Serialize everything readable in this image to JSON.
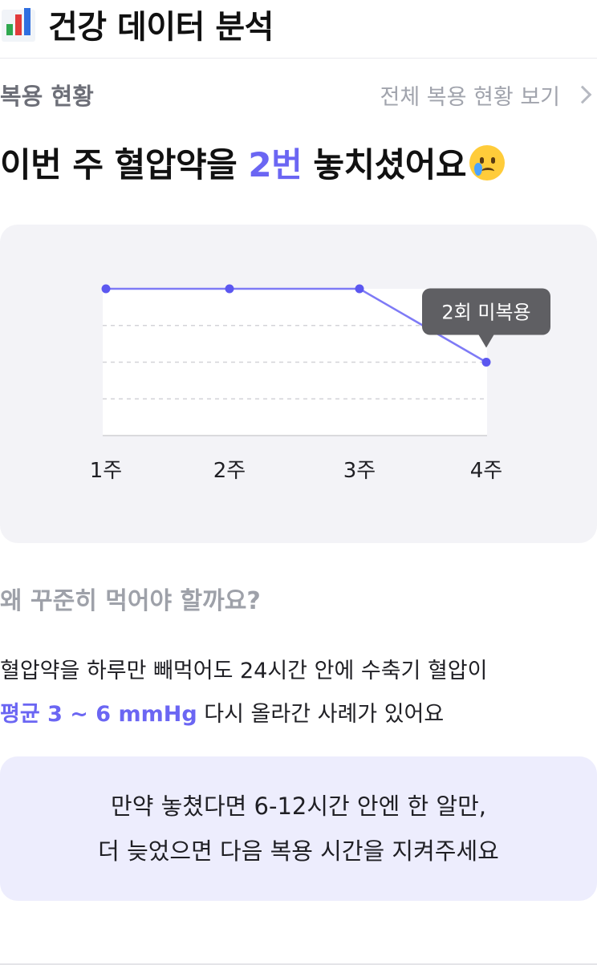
{
  "header": {
    "icon": "bar-chart-icon",
    "title": "건강 데이터 분석"
  },
  "adherence": {
    "label": "복용 현황",
    "view_all": "전체 복용 현황 보기",
    "headline_pre": "이번 주 혈압약을 ",
    "headline_count": "2번",
    "headline_post": " 놓치셨어요",
    "emoji": "crying-face-icon"
  },
  "chart_data": {
    "type": "line",
    "categories": [
      "1주",
      "2주",
      "3주",
      "4주"
    ],
    "series": [
      {
        "values": [
          0,
          0,
          0,
          2
        ]
      }
    ],
    "annotation": {
      "category": "4주",
      "text": "2회 미복용"
    },
    "grid": true,
    "colors": {
      "line": "#7e7af6",
      "point": "#5b57f0",
      "tooltip": "#5f5f63"
    }
  },
  "info": {
    "question": "왜 꾸준히 먹어야 할까요?",
    "line1": "혈압약을 하루만 빼먹어도 24시간 안에 수축기 혈압이",
    "line2_accent": "평균 3 ~ 6 mmHg",
    "line2_rest": " 다시 올라간 사례가 있어요"
  },
  "tip": {
    "line1": "만약 놓쳤다면 6-12시간 안엔 한 알만,",
    "line2": "더 늦었으면 다음 복용 시간을 지켜주세요"
  },
  "colors": {
    "accent": "#6b66f3",
    "card_bg": "#f3f3f7",
    "tip_bg": "#ededfd"
  }
}
